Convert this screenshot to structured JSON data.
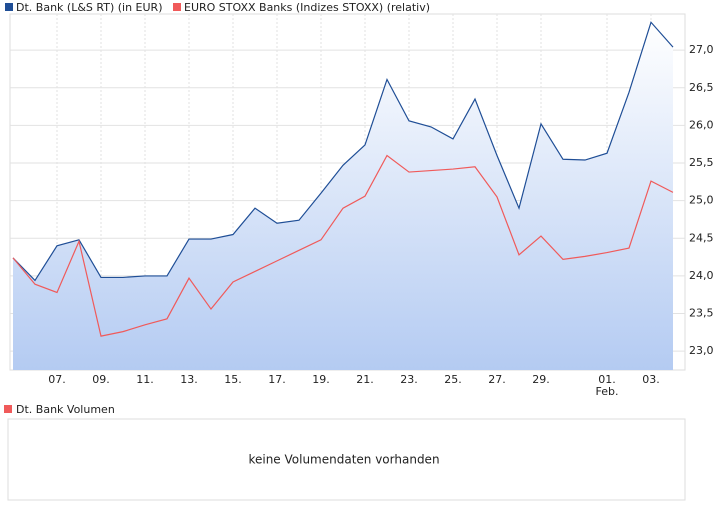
{
  "chart_data": {
    "type": "line",
    "categories": [
      null,
      null,
      "07.",
      null,
      "09.",
      null,
      "11.",
      null,
      "13.",
      null,
      "15.",
      null,
      "17.",
      null,
      "19.",
      null,
      "21.",
      null,
      "23.",
      null,
      "25.",
      null,
      "27.",
      null,
      "29.",
      null,
      null,
      "01.",
      null,
      "03.",
      null
    ],
    "category_sublabels": [
      null,
      null,
      null,
      null,
      null,
      null,
      null,
      null,
      null,
      null,
      null,
      null,
      null,
      null,
      null,
      null,
      null,
      null,
      null,
      null,
      null,
      null,
      null,
      null,
      null,
      null,
      null,
      "Feb.",
      null,
      null,
      null
    ],
    "series": [
      {
        "name": "Dt. Bank (L&S RT) (in EUR)",
        "color": "#1f4e96",
        "area": true,
        "values": [
          24.24,
          23.94,
          24.4,
          24.48,
          23.98,
          23.98,
          24.0,
          24.0,
          24.49,
          24.49,
          24.55,
          24.9,
          24.7,
          24.74,
          25.1,
          25.47,
          25.74,
          26.61,
          26.06,
          25.98,
          25.82,
          26.35,
          25.6,
          24.9,
          26.02,
          25.55,
          25.54,
          25.63,
          26.44,
          27.37,
          27.04
        ]
      },
      {
        "name": "EURO STOXX Banks (Indizes STOXX) (relativ)",
        "color": "#f05a5a",
        "area": false,
        "values": [
          24.24,
          23.89,
          23.78,
          24.46,
          23.2,
          23.26,
          23.35,
          23.43,
          23.97,
          23.56,
          23.92,
          24.06,
          24.2,
          24.34,
          24.48,
          24.9,
          25.06,
          25.6,
          25.38,
          25.4,
          25.42,
          25.45,
          25.05,
          24.28,
          24.53,
          24.22,
          24.26,
          24.31,
          24.37,
          25.26,
          25.11
        ]
      }
    ],
    "ylim": [
      22.75,
      27.48
    ],
    "yticks": [
      {
        "value": 23,
        "label": "23,0"
      },
      {
        "value": 23.5,
        "label": "23,5"
      },
      {
        "value": 24,
        "label": "24,0"
      },
      {
        "value": 24.5,
        "label": "24,5"
      },
      {
        "value": 25,
        "label": "25,0"
      },
      {
        "value": 25.5,
        "label": "25,5"
      },
      {
        "value": 26,
        "label": "26,0"
      },
      {
        "value": 26.5,
        "label": "26,5"
      },
      {
        "value": 27,
        "label": "27,0"
      }
    ],
    "grid": true,
    "volume_legend": "Dt. Bank Volumen",
    "volume_legend_color": "#f05a5a",
    "volume_message": "keine Volumendaten vorhanden"
  }
}
